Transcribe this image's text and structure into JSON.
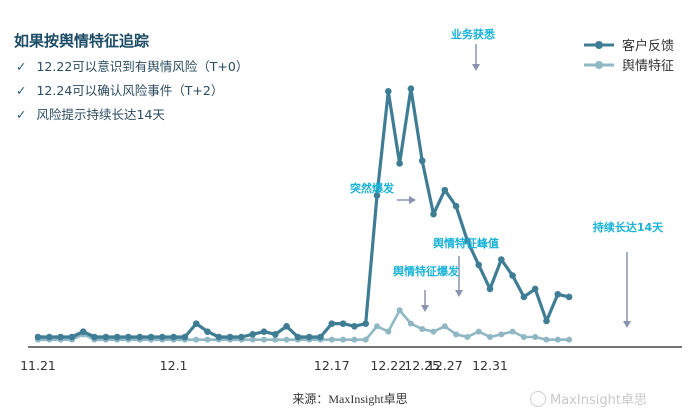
{
  "header": {
    "title": "如果按舆情特征追踪",
    "bullets": [
      "12.22可以意识到有舆情风险（T+0）",
      "12.24可以确认风险事件（T+2）",
      "风险提示持续长达14天"
    ],
    "check_glyph": "✓"
  },
  "footer": {
    "source": "来源：MaxInsight卓思",
    "watermark": "MaxInsight卓思"
  },
  "chart_data": {
    "type": "line",
    "x_tick_labels": [
      "11.21",
      "12.1",
      "12.17",
      "12.22",
      "12.25",
      "12.27",
      "12.31"
    ],
    "x_tick_index": [
      0,
      12,
      26,
      31,
      34,
      36,
      40
    ],
    "ylim": [
      0,
      100
    ],
    "grid": false,
    "legend_position": "top-right",
    "series": [
      {
        "name": "客户反馈",
        "color": "#3f7d94",
        "values": [
          3,
          3,
          3,
          3,
          5,
          3,
          3,
          3,
          3,
          3,
          3,
          3,
          3,
          3,
          8,
          5,
          3,
          3,
          3,
          4,
          5,
          4,
          7,
          3,
          3,
          3,
          8,
          8,
          7,
          8,
          56,
          95,
          68,
          96,
          69,
          49,
          58,
          52,
          39,
          30,
          21,
          32,
          26,
          18,
          21,
          9,
          19,
          18
        ]
      },
      {
        "name": "舆情特征",
        "color": "#8fb7c4",
        "values": [
          2,
          2,
          2,
          2,
          4,
          2,
          2,
          2,
          2,
          2,
          2,
          2,
          2,
          2,
          2,
          2,
          2,
          2,
          2,
          2,
          2,
          2,
          2,
          2,
          2,
          2,
          2,
          2,
          2,
          2,
          7,
          5,
          13,
          8,
          6,
          5,
          7,
          4,
          3,
          5,
          3,
          4,
          5,
          3,
          3,
          2,
          2,
          2
        ]
      }
    ],
    "annotations": [
      {
        "text": "突然爆发",
        "index": 30,
        "value": 56
      },
      {
        "text": "业务获悉",
        "index": 33,
        "value": 96
      },
      {
        "text": "舆情特征峰值",
        "index": 32,
        "value": 13
      },
      {
        "text": "舆情特征爆发",
        "index": 30,
        "value": 7
      },
      {
        "text": "持续长达14天",
        "index": 44,
        "value": 21
      }
    ]
  }
}
